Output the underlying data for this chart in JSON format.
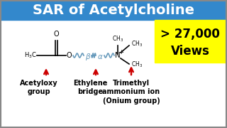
{
  "title": "SAR of Acetylcholine",
  "title_bg": "#3388cc",
  "title_color": "white",
  "body_bg": "white",
  "border_color": "#888888",
  "views_line1": "> 27,000",
  "views_line2": "Views",
  "views_bg": "#ffff00",
  "views_color": "black",
  "label1": "Acetyloxy\ngroup",
  "label2": "Ethylene\nbridge",
  "label3": "Trimethyl\nammonium ion\n(Onium group)",
  "arrow_color": "#cc0000",
  "molecule_color": "black",
  "greek_color": "#6699bb",
  "wavy_color": "#6699bb",
  "title_fontsize": 14,
  "views_fontsize": 12,
  "label_fontsize": 7
}
